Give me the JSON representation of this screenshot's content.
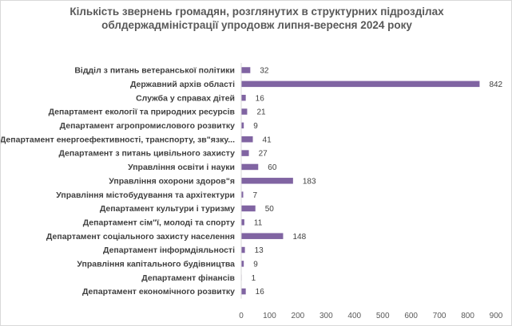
{
  "chart_data": {
    "type": "bar",
    "orientation": "horizontal",
    "title_lines": [
      "Кількість звернень громадян, розглянутих в структурних підрозділах",
      "облдержадміністрації упродовж липня-вересня  2024 року"
    ],
    "categories": [
      "Відділ з питань ветеранської політики",
      "Державний архів області",
      "Служба у справах дітей",
      "Департамент екології та природних ресурсів",
      "Департамент агропромислового розвитку",
      "Департамент енергоефективності, транспорту, зв\"язку...",
      "Департамент з питань цивільного захисту",
      "Управління освіти і науки",
      "Управління охорони здоров\"я",
      "Управління містобудування та архітектури",
      "Департамент культури і туризму",
      "Департамент сім\"ї, молоді та спорту",
      "Департамент соціального захисту населення",
      "Департамент інформдіяльності",
      "Управління капітального будівництва",
      "Департамент фінансів",
      "Департамент економічного розвитку"
    ],
    "values": [
      32,
      842,
      16,
      21,
      9,
      41,
      27,
      60,
      183,
      7,
      50,
      11,
      148,
      13,
      9,
      1,
      16
    ],
    "xlim": [
      0,
      900
    ],
    "xticks": [
      0,
      100,
      200,
      300,
      400,
      500,
      600,
      700,
      800,
      900
    ],
    "grid": false,
    "legend": "none",
    "colors": {
      "bar": "#8064a2",
      "axis": "#d9d9d9",
      "text": "#404040",
      "title": "#595959"
    }
  }
}
